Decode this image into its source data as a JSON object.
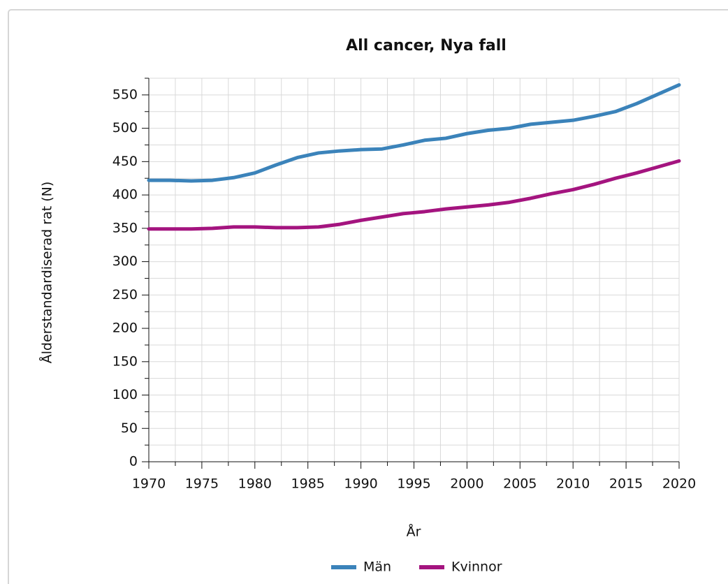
{
  "chart_data": {
    "type": "line",
    "title": "All cancer, Nya fall",
    "y_label": "Ålderstandardiserad rat (N)",
    "x_label": "År",
    "x": [
      1970,
      1972,
      1974,
      1976,
      1978,
      1980,
      1982,
      1984,
      1986,
      1988,
      1990,
      1992,
      1994,
      1996,
      1998,
      2000,
      2002,
      2004,
      2006,
      2008,
      2010,
      2012,
      2014,
      2016,
      2018,
      2020
    ],
    "series": [
      {
        "name": "Män",
        "color": "#3b83ba",
        "values": [
          422,
          422,
          421,
          422,
          426,
          433,
          445,
          456,
          463,
          466,
          468,
          469,
          475,
          482,
          485,
          492,
          497,
          500,
          506,
          509,
          512,
          518,
          525,
          537,
          551,
          565
        ]
      },
      {
        "name": "Kvinnor",
        "color": "#a4147f",
        "values": [
          349,
          349,
          349,
          350,
          352,
          352,
          351,
          351,
          352,
          356,
          362,
          367,
          372,
          375,
          379,
          382,
          385,
          389,
          395,
          402,
          408,
          416,
          425,
          433,
          442,
          451
        ]
      }
    ],
    "xlim": [
      1970,
      2020
    ],
    "xticks": [
      1970,
      1975,
      1980,
      1985,
      1990,
      1995,
      2000,
      2005,
      2010,
      2015,
      2020
    ],
    "ylim": [
      0,
      575
    ],
    "yticks": [
      0,
      50,
      100,
      150,
      200,
      250,
      300,
      350,
      400,
      450,
      500,
      550
    ],
    "grid": true,
    "legend": "bottom"
  }
}
